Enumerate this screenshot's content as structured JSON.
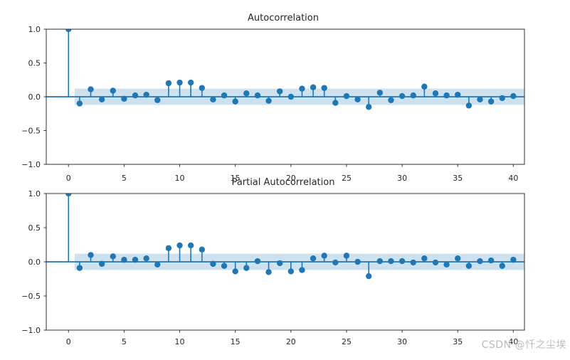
{
  "watermark": {
    "text": "CSDN @忏之尘埃"
  },
  "colors": {
    "stem": "#1f77b4",
    "marker": "#1f77b4",
    "zero_line": "#1f77b4",
    "confidence_band": "#1f77b4",
    "confidence_band_opacity": 0.22,
    "spine": "#333333",
    "tick_label": "#262626",
    "watermark": "#bcbcbc",
    "background": "#ffffff"
  },
  "chart_data": [
    {
      "type": "stem",
      "title": "Autocorrelation",
      "xlabel": "",
      "ylabel": "",
      "xlim": [
        -2,
        41
      ],
      "ylim": [
        -1.0,
        1.0
      ],
      "xticks": [
        0,
        5,
        10,
        15,
        20,
        25,
        30,
        35,
        40
      ],
      "xtick_labels": [
        "0",
        "5",
        "10",
        "15",
        "20",
        "25",
        "30",
        "35",
        "40"
      ],
      "yticks": [
        1.0,
        0.5,
        0.0,
        -0.5,
        -1.0
      ],
      "ytick_labels": [
        "1.0",
        "0.5",
        "0.0",
        "−0.5",
        "−1.0"
      ],
      "grid": false,
      "legend": null,
      "baseline": 0,
      "confidence_band": {
        "from_x": 0.55,
        "upper": 0.12,
        "lower": -0.12
      },
      "lag_start": 0,
      "values": [
        1.0,
        -0.1,
        0.11,
        -0.04,
        0.09,
        -0.03,
        0.02,
        0.03,
        -0.05,
        0.2,
        0.21,
        0.21,
        0.13,
        -0.04,
        0.02,
        -0.07,
        0.05,
        0.02,
        -0.06,
        0.08,
        0.0,
        0.12,
        0.14,
        0.13,
        -0.09,
        0.01,
        -0.04,
        -0.15,
        0.06,
        -0.05,
        0.01,
        0.02,
        0.15,
        0.05,
        0.02,
        0.03,
        -0.13,
        -0.04,
        -0.07,
        -0.02,
        0.01
      ]
    },
    {
      "type": "stem",
      "title": "Partial Autocorrelation",
      "xlabel": "",
      "ylabel": "",
      "xlim": [
        -2,
        41
      ],
      "ylim": [
        -1.0,
        1.0
      ],
      "xticks": [
        0,
        5,
        10,
        15,
        20,
        25,
        30,
        35,
        40
      ],
      "xtick_labels": [
        "0",
        "5",
        "10",
        "15",
        "20",
        "25",
        "30",
        "35",
        "40"
      ],
      "yticks": [
        1.0,
        0.5,
        0.0,
        -0.5,
        -1.0
      ],
      "ytick_labels": [
        "1.0",
        "0.5",
        "0.0",
        "−0.5",
        "−1.0"
      ],
      "grid": false,
      "legend": null,
      "baseline": 0,
      "confidence_band": {
        "from_x": 0.55,
        "upper": 0.12,
        "lower": -0.12
      },
      "lag_start": 0,
      "values": [
        1.0,
        -0.09,
        0.1,
        -0.03,
        0.08,
        0.03,
        0.03,
        0.05,
        -0.04,
        0.2,
        0.24,
        0.24,
        0.18,
        -0.03,
        -0.06,
        -0.14,
        -0.09,
        0.01,
        -0.15,
        -0.02,
        -0.14,
        -0.12,
        0.05,
        0.09,
        -0.01,
        0.09,
        0.0,
        -0.21,
        0.01,
        0.01,
        0.01,
        -0.01,
        0.05,
        -0.01,
        -0.04,
        0.05,
        -0.06,
        0.01,
        0.02,
        -0.06,
        0.03
      ]
    }
  ]
}
